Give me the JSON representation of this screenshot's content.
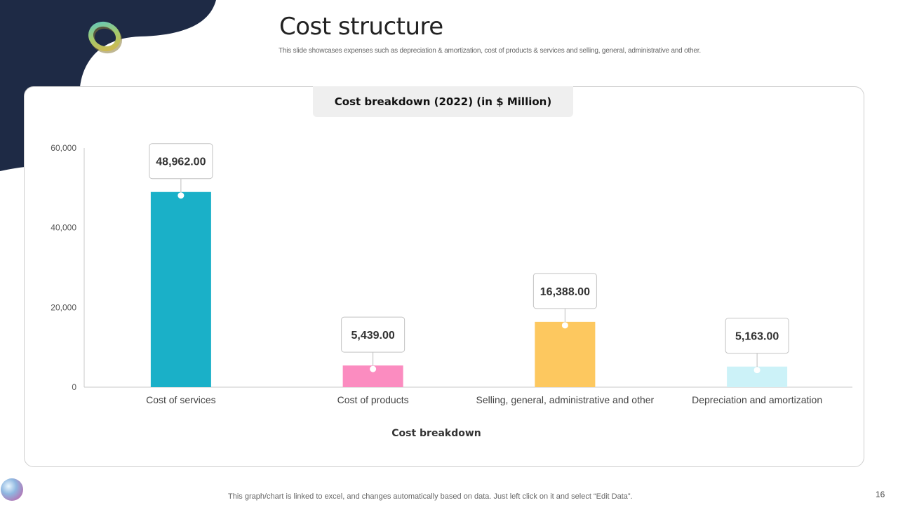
{
  "slide": {
    "title": "Cost structure",
    "subtitle": "This slide showcases expenses such as depreciation & amortization, cost of products & services and selling, general, administrative and other.",
    "footer_note": "This graph/chart is linked to excel,  and changes automatically based on data. Just left click on it and select “Edit Data”.",
    "page_number": "16",
    "colors": {
      "navy": "#1e2a45",
      "accent": "#1ab0c8"
    }
  },
  "chart_data": {
    "type": "bar",
    "title": "Cost breakdown (2022) (in $ Million)",
    "xlabel": "Cost breakdown",
    "ylabel": "",
    "ylim": [
      0,
      60000
    ],
    "yticks": [
      0,
      20000,
      40000,
      60000
    ],
    "ytick_labels": [
      "0",
      "20,000",
      "40,000",
      "60,000"
    ],
    "categories": [
      "Cost of services",
      "Cost of products",
      "Selling, general, administrative and other",
      "Depreciation and amortization"
    ],
    "values": [
      48962,
      5439,
      16388,
      5163
    ],
    "data_labels": [
      "48,962.00",
      "5,439.00",
      "16,388.00",
      "5,163.00"
    ],
    "bar_colors": [
      "#1ab0c8",
      "#fb8cc0",
      "#fdc85f",
      "#ccf2f8"
    ],
    "legend": "none",
    "grid": false
  }
}
